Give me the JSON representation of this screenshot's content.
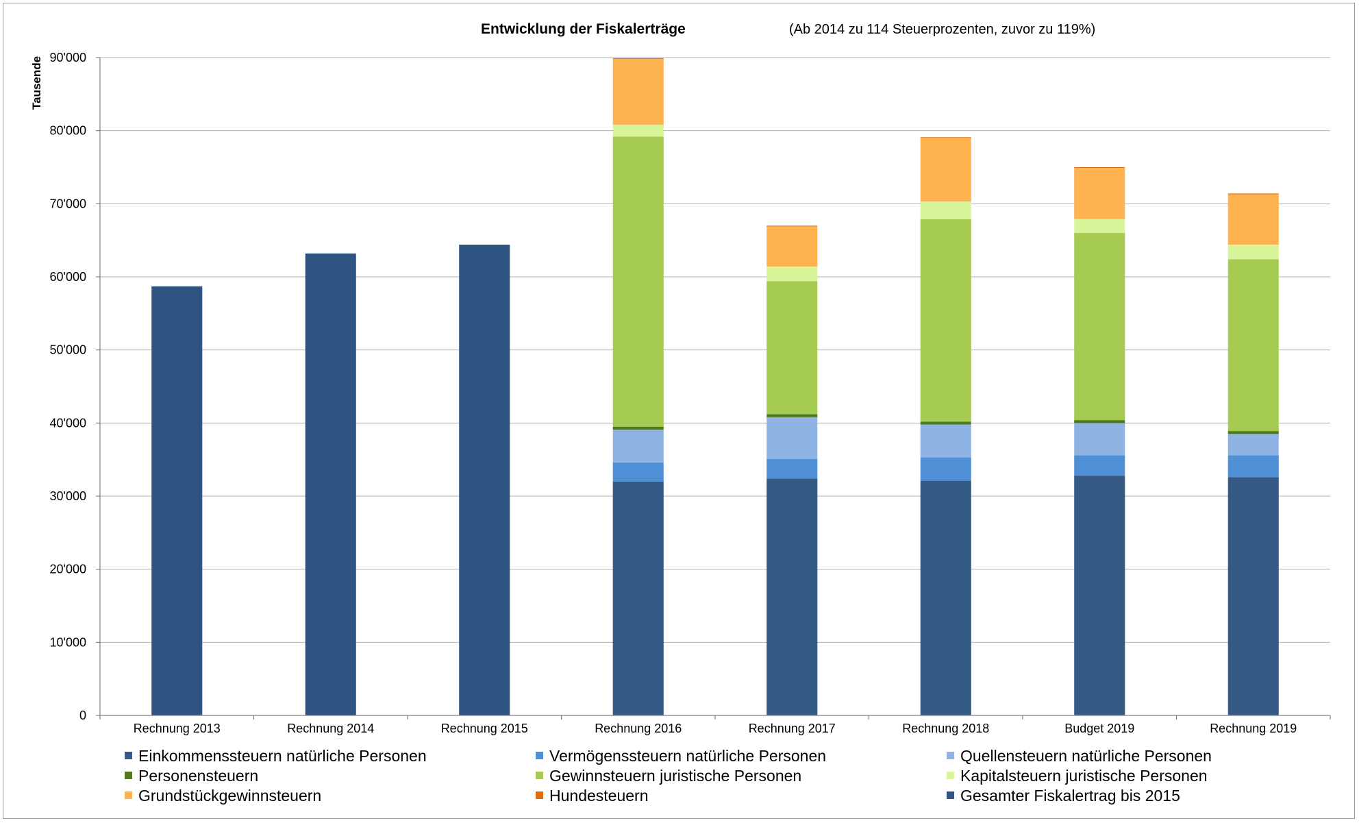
{
  "chart_data": {
    "type": "bar",
    "stacked": true,
    "title": "Entwicklung der Fiskalerträge",
    "subtitle": "(Ab 2014 zu 114 Steuerprozenten, zuvor zu 119%)",
    "ylabel": "Tausende",
    "xlabel": "",
    "ylim": [
      0,
      90000
    ],
    "y_ticks": [
      "0",
      "10'000",
      "20'000",
      "30'000",
      "40'000",
      "50'000",
      "60'000",
      "70'000",
      "80'000",
      "90'000"
    ],
    "grid": true,
    "legend_position": "bottom",
    "categories": [
      "Rechnung 2013",
      "Rechnung 2014",
      "Rechnung 2015",
      "Rechnung 2016",
      "Rechnung 2017",
      "Rechnung 2018",
      "Budget 2019",
      "Rechnung 2019"
    ],
    "series": [
      {
        "name": "Einkommenssteuern natürliche Personen",
        "color": "#355a86",
        "values": [
          0,
          0,
          0,
          32000,
          32400,
          32100,
          32800,
          32600
        ]
      },
      {
        "name": "Vermögenssteuern natürliche Personen",
        "color": "#4f8fd6",
        "values": [
          0,
          0,
          0,
          2600,
          2700,
          3200,
          2800,
          3000
        ]
      },
      {
        "name": "Quellensteuern natürliche Personen",
        "color": "#8fb4e3",
        "values": [
          0,
          0,
          0,
          4500,
          5700,
          4500,
          4400,
          2900
        ]
      },
      {
        "name": "Personensteuern",
        "color": "#4e7a23",
        "values": [
          0,
          0,
          0,
          400,
          400,
          400,
          400,
          400
        ]
      },
      {
        "name": "Gewinnsteuern juristische Personen",
        "color": "#a5cb52",
        "values": [
          0,
          0,
          0,
          39700,
          18200,
          27700,
          25600,
          23500
        ]
      },
      {
        "name": "Kapitalsteuern juristische Personen",
        "color": "#d8f59a",
        "values": [
          0,
          0,
          0,
          1600,
          2000,
          2400,
          1900,
          2000
        ]
      },
      {
        "name": "Grundstückgewinnsteuern",
        "color": "#ffb350",
        "values": [
          0,
          0,
          0,
          9000,
          5500,
          8700,
          7000,
          6900
        ]
      },
      {
        "name": "Hundesteuern",
        "color": "#e36c0a",
        "values": [
          0,
          0,
          0,
          100,
          100,
          100,
          100,
          100
        ]
      },
      {
        "name": "Gesamter Fiskalertrag bis 2015",
        "color": "#2f5481",
        "values": [
          58700,
          63200,
          64400,
          0,
          0,
          0,
          0,
          0
        ]
      }
    ]
  }
}
